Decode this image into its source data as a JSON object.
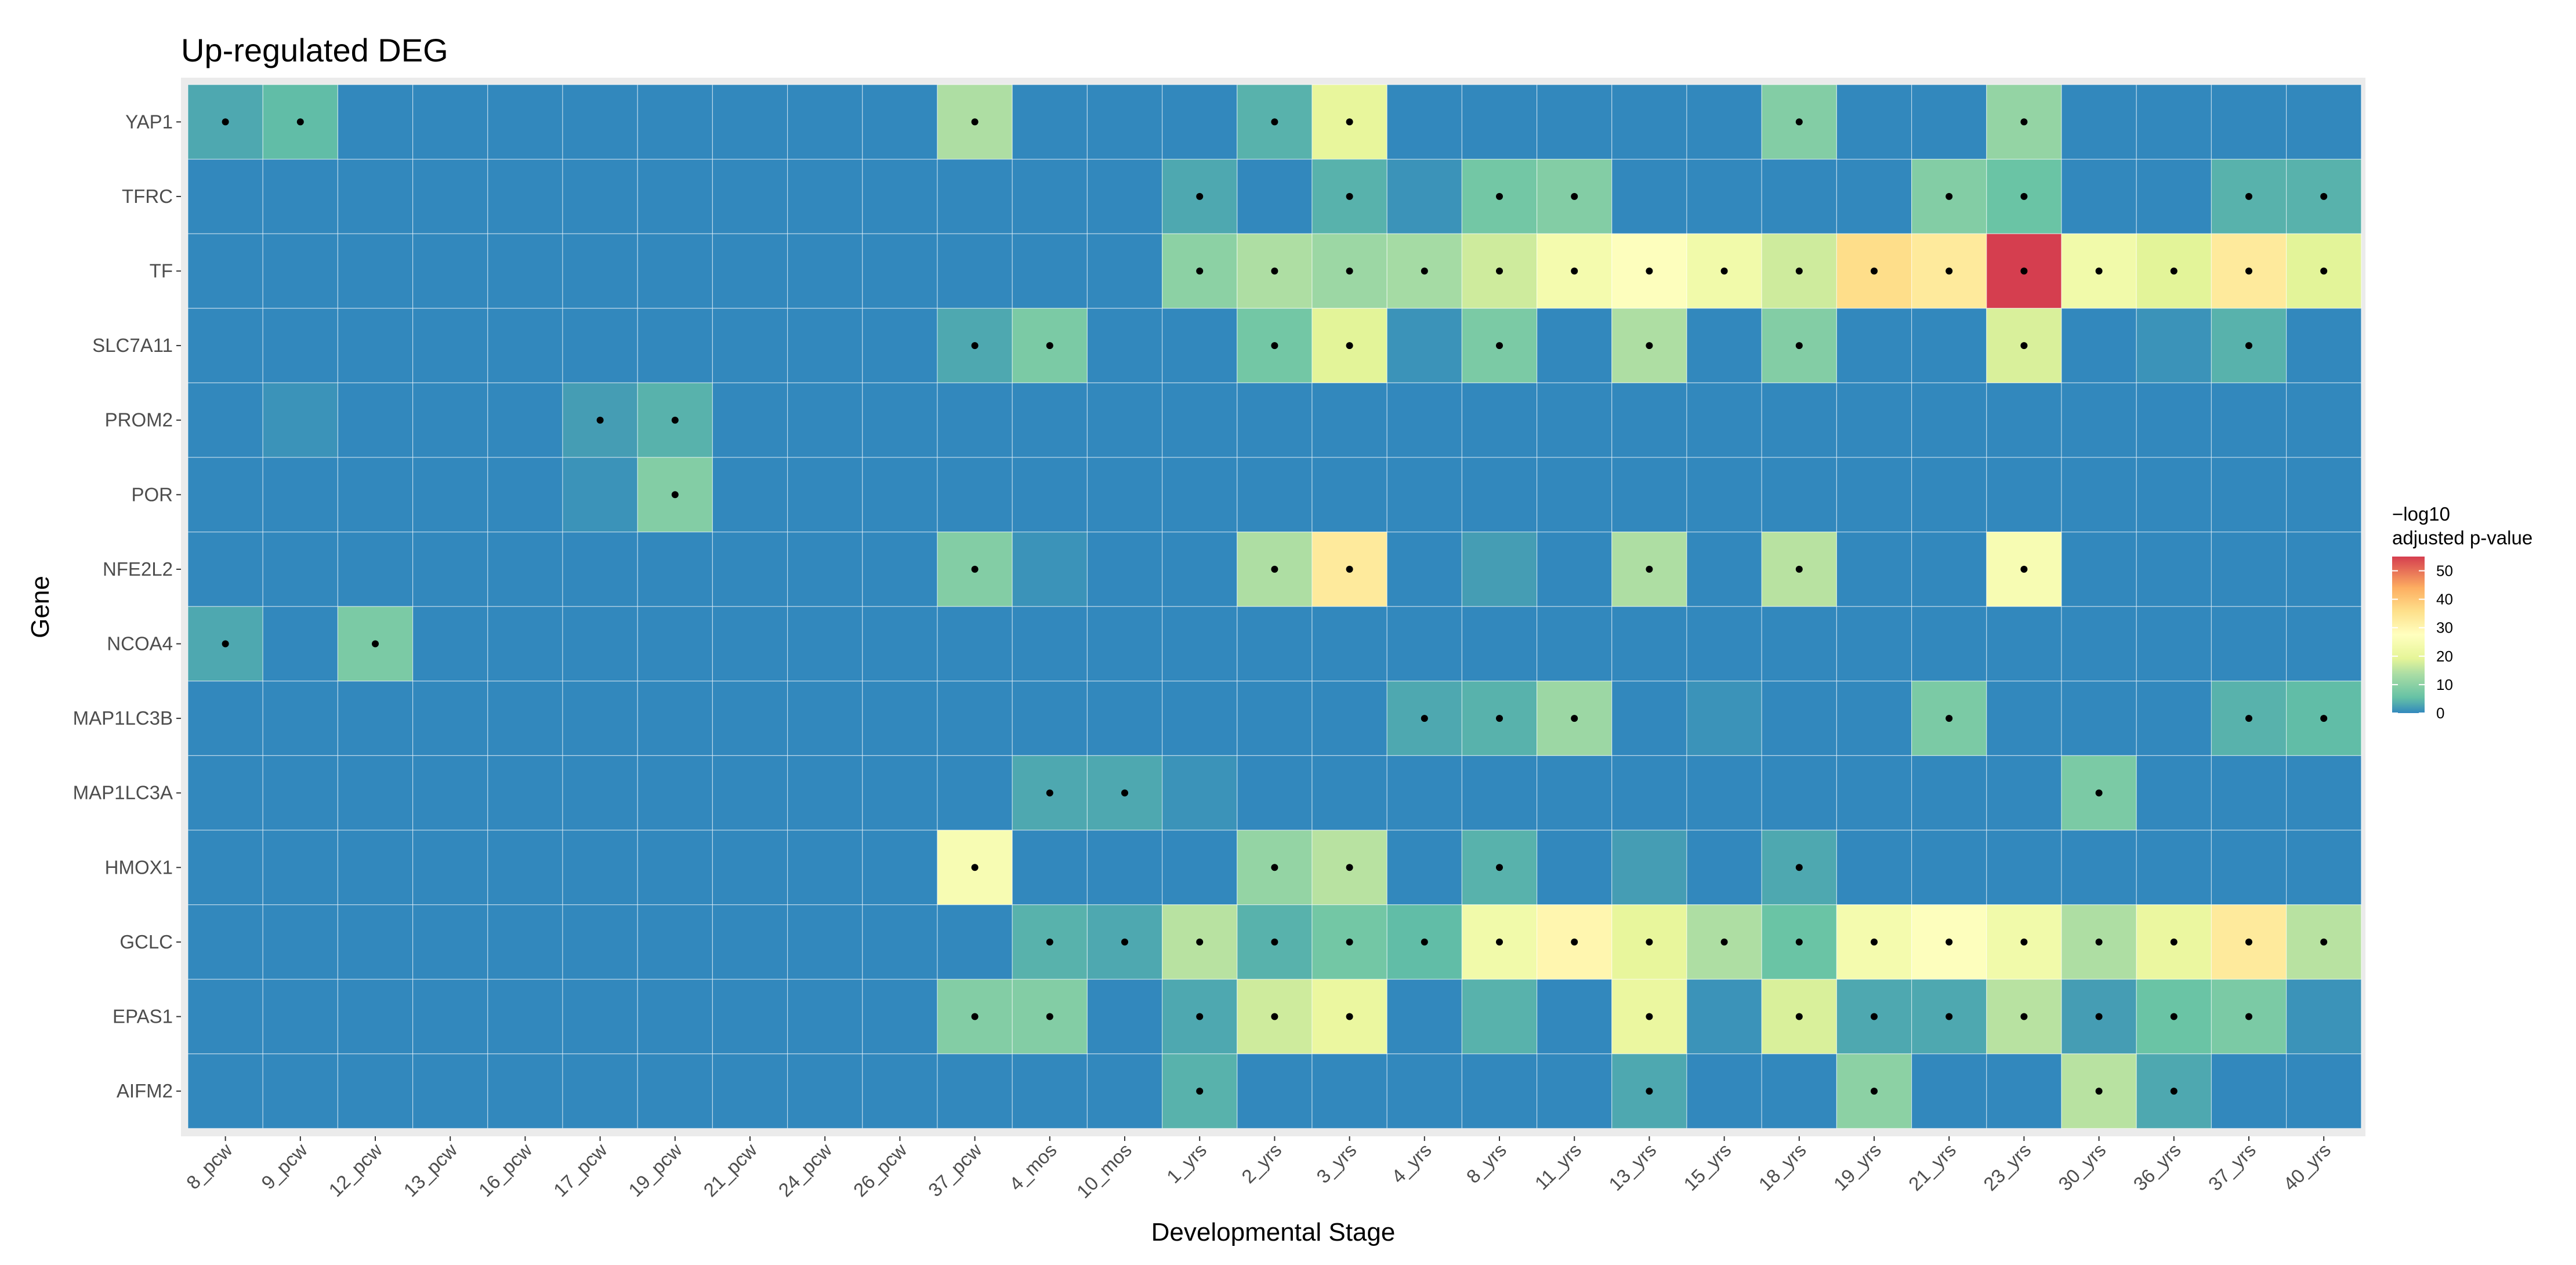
{
  "chart_data": {
    "type": "heatmap",
    "title": "Up-regulated DEG",
    "xlabel": "Developmental Stage",
    "ylabel": "Gene",
    "x_categories": [
      "8_pcw",
      "9_pcw",
      "12_pcw",
      "13_pcw",
      "16_pcw",
      "17_pcw",
      "19_pcw",
      "21_pcw",
      "24_pcw",
      "26_pcw",
      "37_pcw",
      "4_mos",
      "10_mos",
      "1_yrs",
      "2_yrs",
      "3_yrs",
      "4_yrs",
      "8_yrs",
      "11_yrs",
      "13_yrs",
      "15_yrs",
      "18_yrs",
      "19_yrs",
      "21_yrs",
      "23_yrs",
      "30_yrs",
      "36_yrs",
      "37_yrs",
      "40_yrs"
    ],
    "y_categories": [
      "YAP1",
      "TFRC",
      "TF",
      "SLC7A11",
      "PROM2",
      "POR",
      "NFE2L2",
      "NCOA4",
      "MAP1LC3B",
      "MAP1LC3A",
      "HMOX1",
      "GCLC",
      "EPAS1",
      "AIFM2"
    ],
    "values": [
      [
        3,
        5,
        0,
        0,
        0,
        0,
        0,
        0,
        0,
        0,
        14,
        0,
        0,
        0,
        4,
        20,
        0,
        0,
        0,
        0,
        0,
        9,
        0,
        0,
        11,
        0,
        0,
        0,
        0
      ],
      [
        0,
        0,
        0,
        0,
        0,
        0,
        0,
        0,
        0,
        0,
        0,
        0,
        0,
        3,
        0,
        4,
        1,
        7,
        9,
        0,
        0,
        0,
        0,
        9,
        6,
        0,
        0,
        4,
        4
      ],
      [
        0,
        0,
        0,
        0,
        0,
        0,
        0,
        0,
        0,
        0,
        0,
        0,
        0,
        10,
        14,
        12,
        13,
        17,
        24,
        27,
        23,
        17,
        36,
        33,
        55,
        23,
        19,
        33,
        19
      ],
      [
        0,
        0,
        0,
        0,
        0,
        0,
        0,
        0,
        0,
        0,
        3,
        8,
        0,
        0,
        7,
        19,
        1,
        8,
        0,
        14,
        0,
        9,
        0,
        0,
        18,
        0,
        1,
        4,
        0
      ],
      [
        0,
        1,
        0,
        0,
        0,
        2,
        4,
        0,
        0,
        0,
        0,
        0,
        0,
        0,
        0,
        0,
        0,
        0,
        0,
        0,
        0,
        0,
        0,
        0,
        0,
        0,
        0,
        0,
        0
      ],
      [
        0,
        0,
        0,
        0,
        0,
        1,
        9,
        0,
        0,
        0,
        0,
        0,
        0,
        0,
        0,
        0,
        0,
        0,
        0,
        0,
        0,
        0,
        0,
        0,
        0,
        0,
        0,
        0,
        0
      ],
      [
        0,
        0,
        0,
        0,
        0,
        0,
        0,
        0,
        0,
        0,
        9,
        1,
        0,
        0,
        14,
        33,
        0,
        2,
        0,
        14,
        0,
        15,
        0,
        0,
        25,
        0,
        0,
        0,
        0
      ],
      [
        3,
        0,
        8,
        0,
        0,
        0,
        0,
        0,
        0,
        0,
        0,
        0,
        0,
        0,
        0,
        0,
        0,
        0,
        0,
        0,
        0,
        0,
        0,
        0,
        0,
        0,
        0,
        0,
        0
      ],
      [
        0,
        0,
        0,
        0,
        0,
        0,
        0,
        0,
        0,
        0,
        0,
        0,
        0,
        0,
        0,
        0,
        3,
        4,
        12,
        0,
        1,
        0,
        0,
        8,
        0,
        0,
        0,
        4,
        5
      ],
      [
        0,
        0,
        0,
        0,
        0,
        0,
        0,
        0,
        0,
        0,
        0,
        3,
        3,
        1,
        0,
        0,
        0,
        0,
        0,
        0,
        0,
        0,
        0,
        0,
        0,
        8,
        0,
        0,
        0
      ],
      [
        0,
        0,
        0,
        0,
        0,
        0,
        0,
        0,
        0,
        0,
        25,
        0,
        0,
        0,
        11,
        15,
        0,
        4,
        0,
        2,
        0,
        3,
        0,
        0,
        0,
        0,
        0,
        0,
        0
      ],
      [
        0,
        0,
        0,
        0,
        0,
        0,
        0,
        0,
        0,
        0,
        0,
        4,
        3,
        15,
        4,
        7,
        5,
        23,
        30,
        20,
        14,
        6,
        24,
        27,
        23,
        14,
        21,
        33,
        15
      ],
      [
        0,
        0,
        0,
        0,
        0,
        0,
        0,
        0,
        0,
        0,
        9,
        9,
        0,
        3,
        17,
        21,
        0,
        4,
        0,
        21,
        1,
        18,
        3,
        3,
        15,
        2,
        6,
        8,
        1
      ],
      [
        0,
        0,
        0,
        0,
        0,
        0,
        0,
        0,
        0,
        0,
        0,
        0,
        0,
        4,
        0,
        0,
        0,
        0,
        0,
        3,
        0,
        0,
        10,
        0,
        0,
        15,
        3,
        0,
        0
      ]
    ],
    "significant_cells": [
      [
        0,
        0
      ],
      [
        0,
        1
      ],
      [
        0,
        10
      ],
      [
        0,
        14
      ],
      [
        0,
        15
      ],
      [
        0,
        21
      ],
      [
        0,
        24
      ],
      [
        1,
        13
      ],
      [
        1,
        15
      ],
      [
        1,
        17
      ],
      [
        1,
        18
      ],
      [
        1,
        23
      ],
      [
        1,
        24
      ],
      [
        1,
        27
      ],
      [
        1,
        28
      ],
      [
        2,
        13
      ],
      [
        2,
        14
      ],
      [
        2,
        15
      ],
      [
        2,
        16
      ],
      [
        2,
        17
      ],
      [
        2,
        18
      ],
      [
        2,
        19
      ],
      [
        2,
        20
      ],
      [
        2,
        21
      ],
      [
        2,
        22
      ],
      [
        2,
        23
      ],
      [
        2,
        24
      ],
      [
        2,
        25
      ],
      [
        2,
        26
      ],
      [
        2,
        27
      ],
      [
        2,
        28
      ],
      [
        3,
        10
      ],
      [
        3,
        11
      ],
      [
        3,
        14
      ],
      [
        3,
        15
      ],
      [
        3,
        17
      ],
      [
        3,
        19
      ],
      [
        3,
        21
      ],
      [
        3,
        24
      ],
      [
        3,
        27
      ],
      [
        4,
        5
      ],
      [
        4,
        6
      ],
      [
        5,
        6
      ],
      [
        6,
        10
      ],
      [
        6,
        14
      ],
      [
        6,
        15
      ],
      [
        6,
        19
      ],
      [
        6,
        21
      ],
      [
        6,
        24
      ],
      [
        7,
        0
      ],
      [
        7,
        2
      ],
      [
        8,
        16
      ],
      [
        8,
        17
      ],
      [
        8,
        18
      ],
      [
        8,
        23
      ],
      [
        8,
        27
      ],
      [
        8,
        28
      ],
      [
        9,
        11
      ],
      [
        9,
        12
      ],
      [
        9,
        25
      ],
      [
        10,
        10
      ],
      [
        10,
        14
      ],
      [
        10,
        15
      ],
      [
        10,
        17
      ],
      [
        10,
        21
      ],
      [
        11,
        11
      ],
      [
        11,
        12
      ],
      [
        11,
        13
      ],
      [
        11,
        14
      ],
      [
        11,
        15
      ],
      [
        11,
        16
      ],
      [
        11,
        17
      ],
      [
        11,
        18
      ],
      [
        11,
        19
      ],
      [
        11,
        20
      ],
      [
        11,
        21
      ],
      [
        11,
        22
      ],
      [
        11,
        23
      ],
      [
        11,
        24
      ],
      [
        11,
        25
      ],
      [
        11,
        26
      ],
      [
        11,
        27
      ],
      [
        11,
        28
      ],
      [
        12,
        10
      ],
      [
        12,
        11
      ],
      [
        12,
        13
      ],
      [
        12,
        14
      ],
      [
        12,
        15
      ],
      [
        12,
        19
      ],
      [
        12,
        21
      ],
      [
        12,
        22
      ],
      [
        12,
        23
      ],
      [
        12,
        24
      ],
      [
        12,
        25
      ],
      [
        12,
        26
      ],
      [
        12,
        27
      ],
      [
        13,
        13
      ],
      [
        13,
        19
      ],
      [
        13,
        22
      ],
      [
        13,
        25
      ],
      [
        13,
        26
      ]
    ],
    "color_scale": {
      "name": "Spectral (reversed)",
      "min": 0,
      "max": 55,
      "stops": [
        {
          "value": 0,
          "color": "#3288bd"
        },
        {
          "value": 5.5,
          "color": "#66c2a5"
        },
        {
          "value": 13.75,
          "color": "#abdda4"
        },
        {
          "value": 19.25,
          "color": "#e6f598"
        },
        {
          "value": 27.5,
          "color": "#ffffbf"
        },
        {
          "value": 35.75,
          "color": "#fee08b"
        },
        {
          "value": 44,
          "color": "#fdae61"
        },
        {
          "value": 55,
          "color": "#d53e4f"
        }
      ]
    },
    "legend": {
      "title_line1": "−log10",
      "title_line2": "adjusted p-value",
      "ticks": [
        0,
        10,
        20,
        30,
        40,
        50
      ],
      "placement": "right"
    },
    "panel_background": "#ebebeb",
    "tile_border_color": "#ffffff",
    "grid": true
  }
}
